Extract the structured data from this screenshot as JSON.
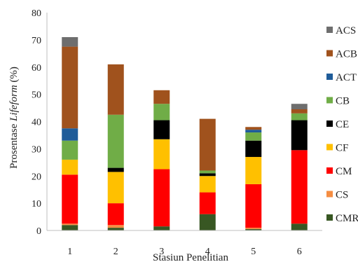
{
  "chart_data": {
    "type": "bar",
    "stacked": true,
    "xlabel": "Stasiun Penelitian",
    "ylabel_prefix": "Prosentase ",
    "ylabel_italic": "Lifeform",
    "ylabel_suffix": " (%)",
    "ylim": [
      0,
      80
    ],
    "yticks": [
      0,
      10,
      20,
      30,
      40,
      50,
      60,
      70,
      80
    ],
    "grid": false,
    "legend_position": "right",
    "categories": [
      "1",
      "2",
      "3",
      "4",
      "5",
      "6"
    ],
    "series": [
      {
        "name": "CMR",
        "color": "#385723",
        "values": [
          2,
          1,
          1.5,
          6,
          0.5,
          2.5
        ]
      },
      {
        "name": "CS",
        "color": "#F58D42",
        "values": [
          0.5,
          1,
          0,
          0,
          0.5,
          0
        ]
      },
      {
        "name": "CM",
        "color": "#FF0000",
        "values": [
          18,
          8,
          21,
          8,
          16,
          27
        ]
      },
      {
        "name": "CF",
        "color": "#FFC000",
        "values": [
          5.5,
          11.5,
          11,
          6,
          10,
          0
        ]
      },
      {
        "name": "CE",
        "color": "#000000",
        "values": [
          0,
          1.5,
          7,
          1,
          6,
          11
        ]
      },
      {
        "name": "CB",
        "color": "#70AD47",
        "values": [
          7,
          19.5,
          6,
          1,
          3,
          2.5
        ]
      },
      {
        "name": "ACT",
        "color": "#1F5C99",
        "values": [
          4.5,
          0,
          0,
          0,
          1,
          0
        ]
      },
      {
        "name": "ACB",
        "color": "#A0521D",
        "values": [
          30,
          18.5,
          5,
          19,
          1,
          1.5
        ]
      },
      {
        "name": "ACS",
        "color": "#6E6E6E",
        "values": [
          3.5,
          0,
          0,
          0,
          0,
          2
        ]
      }
    ]
  }
}
